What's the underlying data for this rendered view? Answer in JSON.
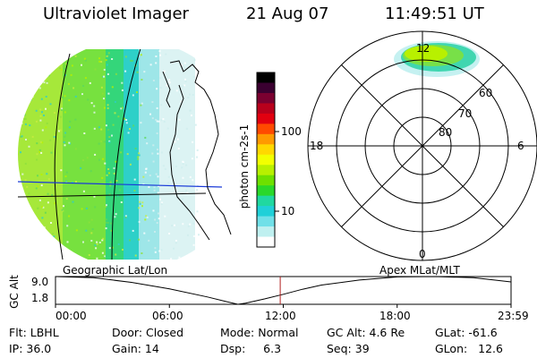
{
  "header": {
    "title": "Ultraviolet Imager",
    "date": "21 Aug 07",
    "time": "11:49:51 UT"
  },
  "colorbar": {
    "unit_label": "photon cm-2s-1",
    "ticks": [
      "100",
      "10"
    ],
    "colors": [
      "#000000",
      "#3a0030",
      "#7a0030",
      "#b8001c",
      "#e20010",
      "#ff4a00",
      "#ff9a00",
      "#ffd800",
      "#f2ff00",
      "#b8f000",
      "#6ee000",
      "#2ad82a",
      "#20d8a0",
      "#20d0d8",
      "#70e0e8",
      "#bff0f0",
      "#ffffff"
    ]
  },
  "left_panel": {
    "caption": "Geographic Lat/Lon"
  },
  "polar_plot": {
    "caption": "Apex MLat/MLT",
    "mlt_labels": {
      "top": "12",
      "left": "18",
      "right": "6",
      "bottom": "0"
    },
    "lat_labels": [
      "60",
      "70",
      "80"
    ]
  },
  "chart_data": {
    "type": "line",
    "title": "",
    "ylabel": "GC Alt",
    "yticks": [
      "9.0",
      "1.8"
    ],
    "ylim": [
      1.8,
      9.0
    ],
    "xticks": [
      "00:00",
      "06:00",
      "12:00",
      "18:00",
      "23:59"
    ],
    "xlim_hours": [
      0,
      23.98
    ],
    "series": [
      {
        "x": [
          0,
          2,
          4,
          6,
          8,
          9,
          9.6,
          10,
          11,
          12,
          13,
          14,
          16,
          18,
          20,
          22,
          23.98
        ],
        "y": [
          9.0,
          8.7,
          7.5,
          5.8,
          3.7,
          2.5,
          1.8,
          2.1,
          3.2,
          4.4,
          5.7,
          6.8,
          8.1,
          8.9,
          9.0,
          8.7,
          7.6
        ]
      }
    ],
    "current_time_hours": 11.83,
    "marker_color": "#b02020"
  },
  "footer": {
    "rows": [
      [
        "Flt: LBHL",
        "Door: Closed",
        "Mode: Normal",
        "GC Alt: 4.6 Re",
        "GLat: -61.6"
      ],
      [
        "IP: 36.0",
        "Gain: 14",
        "Dsp:     6.3",
        "Seq: 39",
        "GLon:   12.6"
      ]
    ]
  }
}
